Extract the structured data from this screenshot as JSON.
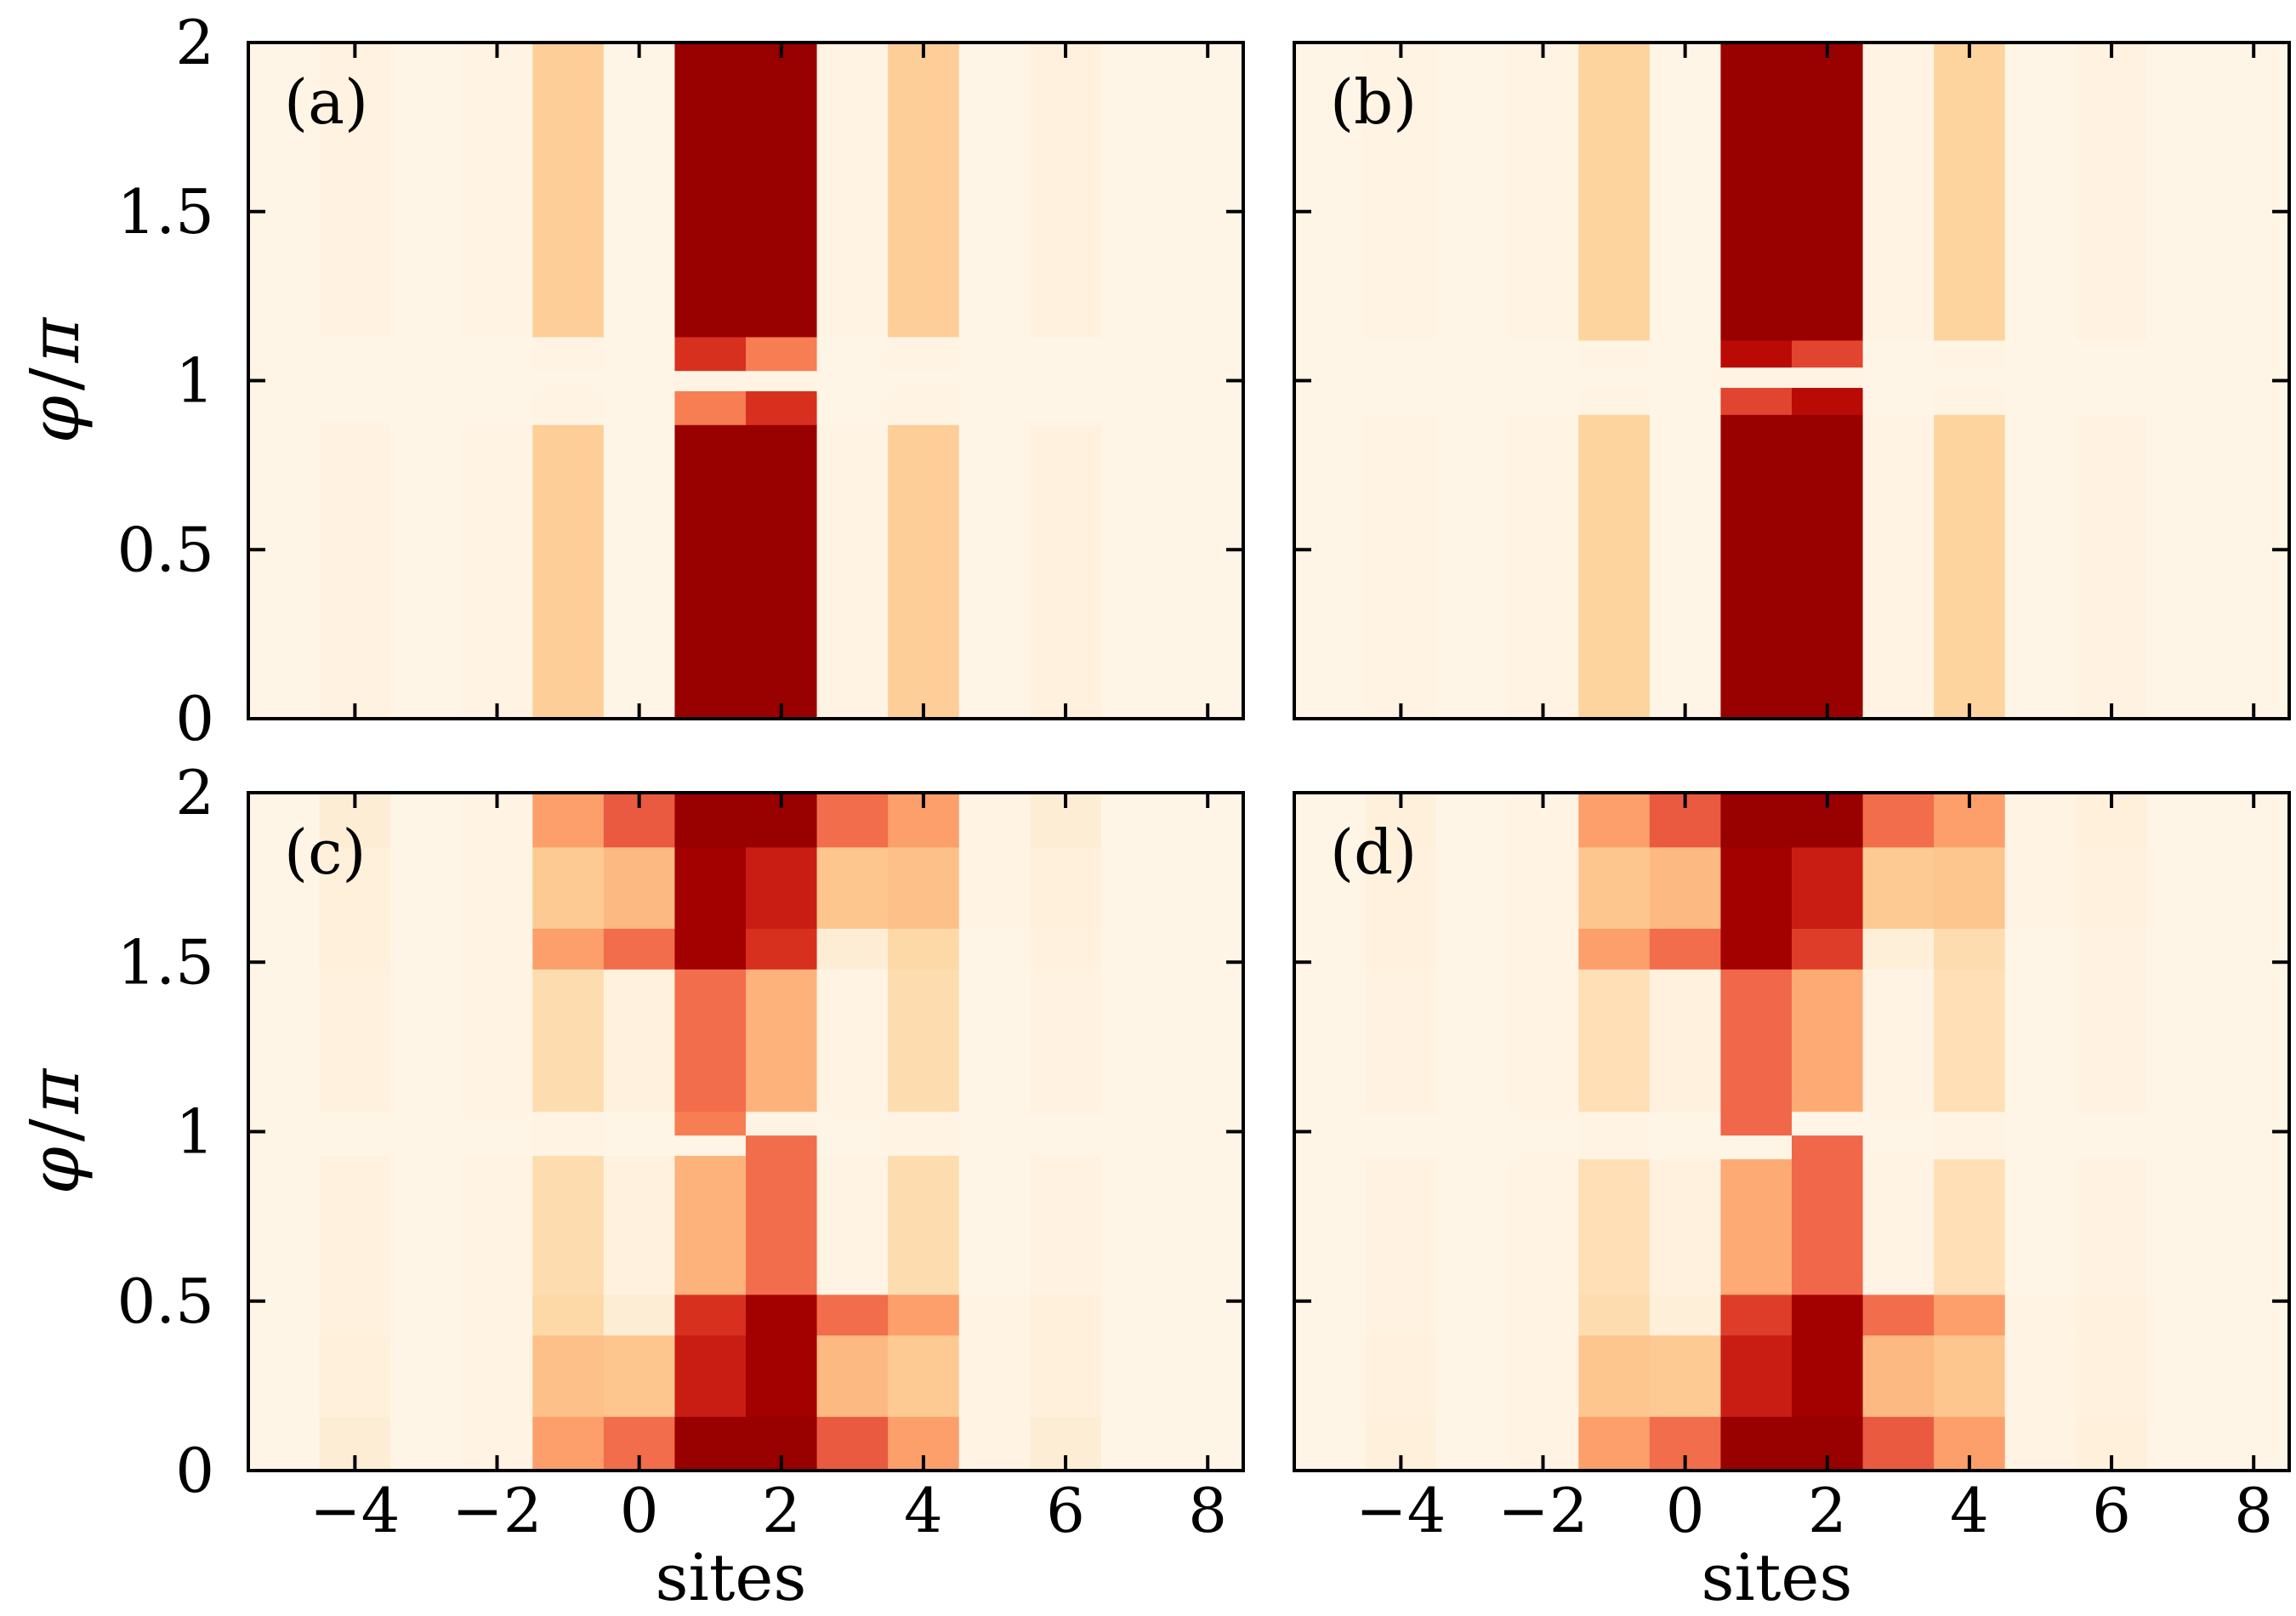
{
  "chart_data": {
    "type": "heatmap",
    "colormap": [
      "#fff7ec",
      "#fee8c8",
      "#fdd49e",
      "#fdbb84",
      "#fc8d59",
      "#ef6548",
      "#d7301f",
      "#b30000",
      "#990000"
    ],
    "xlabel": "sites",
    "ylabel_prefix": "φ",
    "ylabel_suffix": "π",
    "xlim": [
      -5.5,
      8.5
    ],
    "ylim": [
      0,
      2
    ],
    "xticks": [
      -4,
      -2,
      0,
      2,
      4,
      6,
      8
    ],
    "xtick_labels": [
      "−4",
      "−2",
      "0",
      "2",
      "4",
      "6",
      "8"
    ],
    "yticks": [
      0,
      0.5,
      1,
      1.5,
      2
    ],
    "ytick_labels": [
      "0",
      "0.5",
      "1",
      "1.5",
      "2"
    ],
    "sites": [
      -5,
      -4,
      -3,
      -2,
      -1,
      0,
      1,
      2,
      3,
      4,
      5,
      6,
      7,
      8
    ],
    "panels": [
      {
        "label": "(a)",
        "rows": [
          {
            "y0": 0,
            "y1": 0.87,
            "values": [
              0.02,
              0.04,
              0.02,
              0.03,
              0.28,
              0.02,
              1.0,
              1.0,
              0.03,
              0.28,
              0.02,
              0.05,
              0.02,
              0.02
            ]
          },
          {
            "y0": 0.87,
            "y1": 0.97,
            "values": [
              0.02,
              0.02,
              0.02,
              0.02,
              0.03,
              0.02,
              0.55,
              0.75,
              0.02,
              0.03,
              0.02,
              0.02,
              0.02,
              0.02
            ]
          },
          {
            "y0": 0.97,
            "y1": 1.03,
            "values": [
              0.02,
              0.02,
              0.02,
              0.02,
              0.02,
              0.02,
              0.03,
              0.03,
              0.02,
              0.02,
              0.02,
              0.02,
              0.02,
              0.02
            ]
          },
          {
            "y0": 1.03,
            "y1": 1.13,
            "values": [
              0.02,
              0.02,
              0.02,
              0.02,
              0.03,
              0.02,
              0.75,
              0.55,
              0.02,
              0.03,
              0.02,
              0.02,
              0.02,
              0.02
            ]
          },
          {
            "y0": 1.13,
            "y1": 2,
            "values": [
              0.02,
              0.04,
              0.02,
              0.03,
              0.28,
              0.02,
              1.0,
              1.0,
              0.03,
              0.28,
              0.02,
              0.05,
              0.02,
              0.02
            ]
          }
        ]
      },
      {
        "label": "(b)",
        "rows": [
          {
            "y0": 0,
            "y1": 0.9,
            "values": [
              0.02,
              0.03,
              0.02,
              0.03,
              0.25,
              0.02,
              1.0,
              1.0,
              0.03,
              0.25,
              0.02,
              0.04,
              0.02,
              0.02
            ]
          },
          {
            "y0": 0.9,
            "y1": 0.98,
            "values": [
              0.02,
              0.02,
              0.02,
              0.02,
              0.03,
              0.02,
              0.7,
              0.85,
              0.02,
              0.03,
              0.02,
              0.02,
              0.02,
              0.02
            ]
          },
          {
            "y0": 0.98,
            "y1": 1.04,
            "values": [
              0.02,
              0.02,
              0.02,
              0.02,
              0.02,
              0.02,
              0.03,
              0.03,
              0.02,
              0.02,
              0.02,
              0.02,
              0.02,
              0.02
            ]
          },
          {
            "y0": 1.04,
            "y1": 1.12,
            "values": [
              0.02,
              0.02,
              0.02,
              0.02,
              0.03,
              0.02,
              0.85,
              0.7,
              0.02,
              0.03,
              0.02,
              0.02,
              0.02,
              0.02
            ]
          },
          {
            "y0": 1.12,
            "y1": 2,
            "values": [
              0.02,
              0.03,
              0.02,
              0.03,
              0.25,
              0.02,
              1.0,
              1.0,
              0.03,
              0.25,
              0.02,
              0.04,
              0.02,
              0.02
            ]
          }
        ]
      },
      {
        "label": "(c)",
        "rows": [
          {
            "y0": 0,
            "y1": 0.16,
            "values": [
              0.02,
              0.08,
              0.02,
              0.03,
              0.45,
              0.6,
              1.0,
              1.0,
              0.65,
              0.45,
              0.03,
              0.08,
              0.02,
              0.02
            ]
          },
          {
            "y0": 0.16,
            "y1": 0.4,
            "values": [
              0.02,
              0.06,
              0.02,
              0.03,
              0.35,
              0.32,
              0.8,
              0.95,
              0.38,
              0.3,
              0.03,
              0.06,
              0.02,
              0.02
            ]
          },
          {
            "y0": 0.4,
            "y1": 0.52,
            "values": [
              0.02,
              0.05,
              0.02,
              0.03,
              0.22,
              0.08,
              0.75,
              0.95,
              0.6,
              0.45,
              0.03,
              0.06,
              0.02,
              0.02
            ]
          },
          {
            "y0": 0.52,
            "y1": 0.93,
            "values": [
              0.02,
              0.05,
              0.02,
              0.03,
              0.2,
              0.05,
              0.4,
              0.6,
              0.03,
              0.2,
              0.02,
              0.04,
              0.02,
              0.02
            ]
          },
          {
            "y0": 0.93,
            "y1": 0.99,
            "values": [
              0.02,
              0.02,
              0.02,
              0.02,
              0.03,
              0.02,
              0.02,
              0.6,
              0.02,
              0.03,
              0.02,
              0.02,
              0.02,
              0.02
            ]
          },
          {
            "y0": 0.99,
            "y1": 1.06,
            "values": [
              0.02,
              0.02,
              0.02,
              0.02,
              0.03,
              0.02,
              0.55,
              0.03,
              0.02,
              0.03,
              0.02,
              0.02,
              0.02,
              0.02
            ]
          },
          {
            "y0": 1.06,
            "y1": 1.48,
            "values": [
              0.02,
              0.05,
              0.02,
              0.03,
              0.2,
              0.05,
              0.6,
              0.4,
              0.03,
              0.2,
              0.02,
              0.04,
              0.02,
              0.02
            ]
          },
          {
            "y0": 1.48,
            "y1": 1.6,
            "values": [
              0.02,
              0.06,
              0.02,
              0.03,
              0.45,
              0.6,
              0.95,
              0.75,
              0.08,
              0.22,
              0.02,
              0.05,
              0.02,
              0.02
            ]
          },
          {
            "y0": 1.6,
            "y1": 1.84,
            "values": [
              0.02,
              0.06,
              0.02,
              0.03,
              0.3,
              0.38,
              0.95,
              0.8,
              0.32,
              0.35,
              0.03,
              0.06,
              0.02,
              0.02
            ]
          },
          {
            "y0": 1.84,
            "y1": 2,
            "values": [
              0.02,
              0.08,
              0.02,
              0.03,
              0.45,
              0.65,
              1.0,
              1.0,
              0.6,
              0.45,
              0.03,
              0.08,
              0.02,
              0.02
            ]
          }
        ]
      },
      {
        "label": "(d)",
        "rows": [
          {
            "y0": 0,
            "y1": 0.16,
            "values": [
              0.02,
              0.06,
              0.02,
              0.03,
              0.45,
              0.6,
              1.0,
              1.0,
              0.65,
              0.45,
              0.03,
              0.06,
              0.02,
              0.02
            ]
          },
          {
            "y0": 0.16,
            "y1": 0.4,
            "values": [
              0.02,
              0.05,
              0.02,
              0.03,
              0.32,
              0.3,
              0.8,
              0.95,
              0.38,
              0.32,
              0.03,
              0.05,
              0.02,
              0.02
            ]
          },
          {
            "y0": 0.4,
            "y1": 0.52,
            "values": [
              0.02,
              0.04,
              0.02,
              0.03,
              0.2,
              0.07,
              0.72,
              0.95,
              0.6,
              0.45,
              0.03,
              0.05,
              0.02,
              0.02
            ]
          },
          {
            "y0": 0.52,
            "y1": 0.92,
            "values": [
              0.02,
              0.04,
              0.02,
              0.03,
              0.18,
              0.05,
              0.42,
              0.62,
              0.03,
              0.18,
              0.02,
              0.04,
              0.02,
              0.02
            ]
          },
          {
            "y0": 0.92,
            "y1": 0.99,
            "values": [
              0.02,
              0.02,
              0.02,
              0.02,
              0.03,
              0.02,
              0.02,
              0.62,
              0.02,
              0.03,
              0.02,
              0.02,
              0.02,
              0.02
            ]
          },
          {
            "y0": 0.99,
            "y1": 1.06,
            "values": [
              0.02,
              0.02,
              0.02,
              0.02,
              0.03,
              0.02,
              0.62,
              0.02,
              0.02,
              0.03,
              0.02,
              0.02,
              0.02,
              0.02
            ]
          },
          {
            "y0": 1.06,
            "y1": 1.48,
            "values": [
              0.02,
              0.04,
              0.02,
              0.03,
              0.18,
              0.05,
              0.62,
              0.42,
              0.03,
              0.18,
              0.02,
              0.04,
              0.02,
              0.02
            ]
          },
          {
            "y0": 1.48,
            "y1": 1.6,
            "values": [
              0.02,
              0.05,
              0.02,
              0.03,
              0.45,
              0.6,
              0.95,
              0.72,
              0.07,
              0.2,
              0.02,
              0.04,
              0.02,
              0.02
            ]
          },
          {
            "y0": 1.6,
            "y1": 1.84,
            "values": [
              0.02,
              0.05,
              0.02,
              0.03,
              0.32,
              0.38,
              0.95,
              0.8,
              0.3,
              0.32,
              0.03,
              0.05,
              0.02,
              0.02
            ]
          },
          {
            "y0": 1.84,
            "y1": 2,
            "values": [
              0.02,
              0.06,
              0.02,
              0.03,
              0.45,
              0.65,
              1.0,
              1.0,
              0.6,
              0.45,
              0.03,
              0.06,
              0.02,
              0.02
            ]
          }
        ]
      }
    ]
  }
}
